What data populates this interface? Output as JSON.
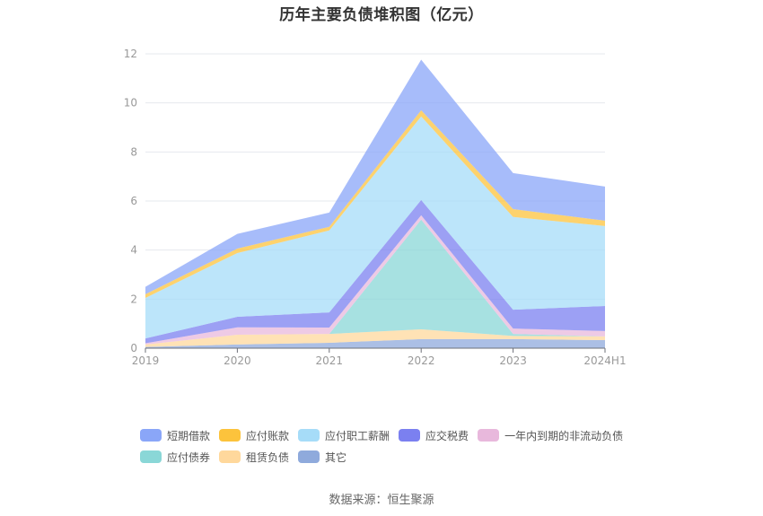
{
  "title": "历年主要负债堆积图（亿元）",
  "source": "数据来源：恒生聚源",
  "chart_data": {
    "type": "area",
    "stacked": true,
    "title": "历年主要负债堆积图（亿元）",
    "xlabel": "",
    "ylabel": "",
    "ylim": [
      0,
      12
    ],
    "yticks": [
      0,
      2,
      4,
      6,
      8,
      10,
      12
    ],
    "grid": true,
    "legend_position": "bottom",
    "categories": [
      "2019",
      "2020",
      "2021",
      "2022",
      "2023",
      "2024H1"
    ],
    "series": [
      {
        "name": "其它",
        "color": "#8faadc",
        "values": [
          0.05,
          0.15,
          0.22,
          0.37,
          0.37,
          0.33
        ]
      },
      {
        "name": "租赁负债",
        "color": "#ffd89c",
        "values": [
          0.1,
          0.4,
          0.36,
          0.4,
          0.13,
          0.15
        ]
      },
      {
        "name": "应付债券",
        "color": "#8ad7d7",
        "values": [
          0.0,
          0.0,
          0.0,
          4.47,
          0.08,
          0.0
        ]
      },
      {
        "name": "一年内到期的非流动负债",
        "color": "#e8b8dc",
        "values": [
          0.05,
          0.3,
          0.26,
          0.18,
          0.22,
          0.22
        ]
      },
      {
        "name": "应交税费",
        "color": "#7b80f0",
        "values": [
          0.2,
          0.43,
          0.62,
          0.62,
          0.77,
          1.02
        ]
      },
      {
        "name": "应付职工薪酬",
        "color": "#a6dcf8",
        "values": [
          1.65,
          2.6,
          3.34,
          3.41,
          3.78,
          3.26
        ]
      },
      {
        "name": "应付账款",
        "color": "#fcc33c",
        "values": [
          0.15,
          0.18,
          0.15,
          0.25,
          0.32,
          0.22
        ]
      },
      {
        "name": "短期借款",
        "color": "#8aa6f8",
        "values": [
          0.3,
          0.6,
          0.58,
          2.06,
          1.47,
          1.39
        ]
      }
    ]
  },
  "legend": {
    "row1": [
      {
        "name": "短期借款",
        "color": "#8aa6f8"
      },
      {
        "name": "应付账款",
        "color": "#fcc33c"
      },
      {
        "name": "应付职工薪酬",
        "color": "#a6dcf8"
      },
      {
        "name": "应交税费",
        "color": "#7b80f0"
      },
      {
        "name": "一年内到期的非流动负债",
        "color": "#e8b8dc"
      }
    ],
    "row2": [
      {
        "name": "应付债券",
        "color": "#8ad7d7"
      },
      {
        "name": "租赁负债",
        "color": "#ffd89c"
      },
      {
        "name": "其它",
        "color": "#8faadc"
      }
    ]
  }
}
